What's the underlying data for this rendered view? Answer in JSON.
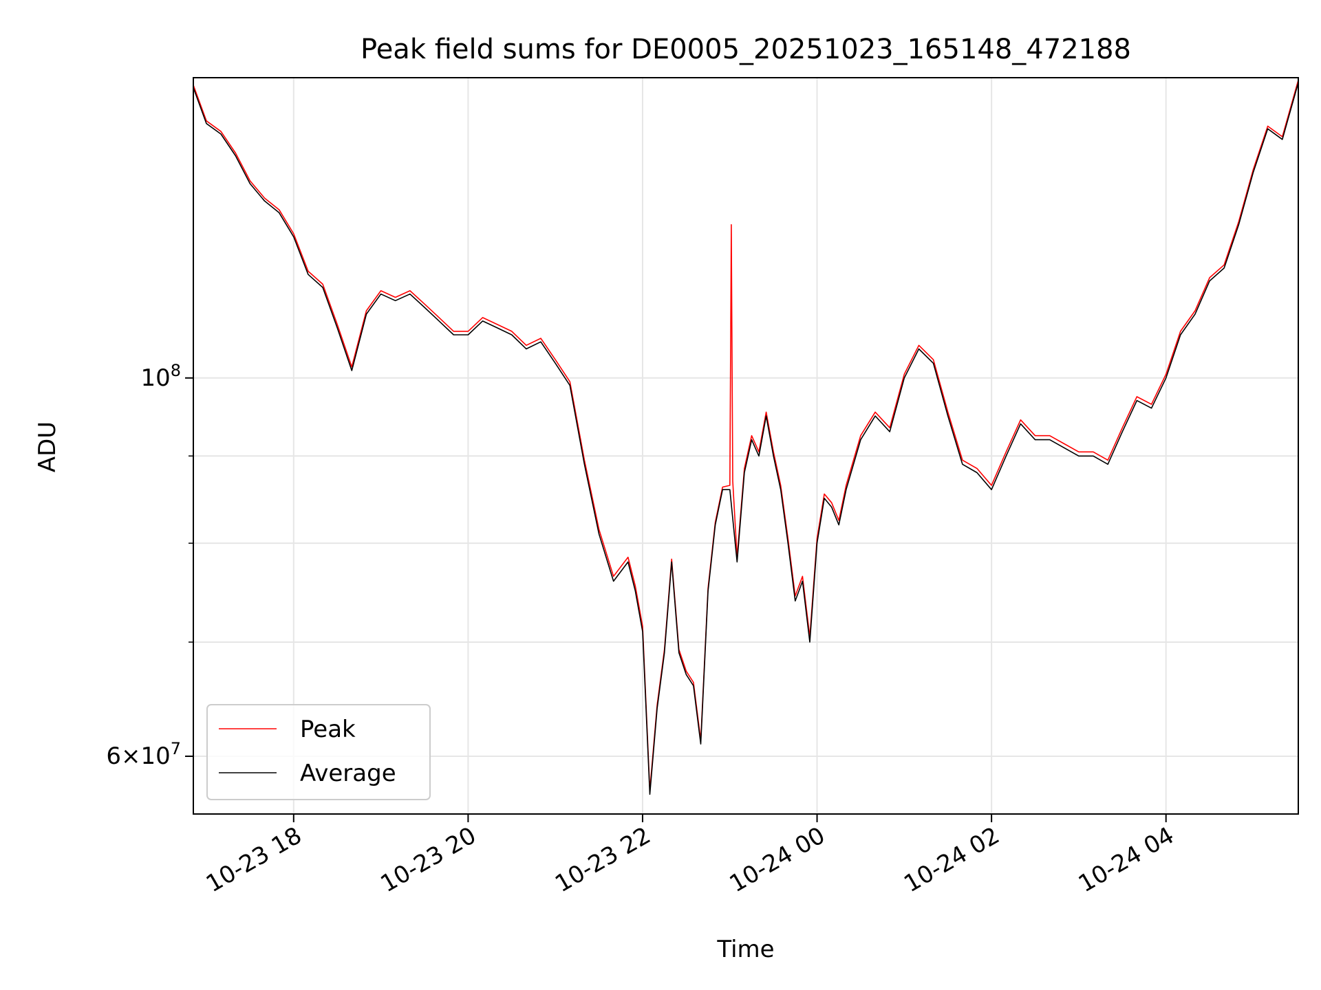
{
  "chart_data": {
    "type": "line",
    "title": "Peak field sums for DE0005_20251023_165148_472188",
    "xlabel": "Time",
    "ylabel": "ADU",
    "x_scale": "time",
    "y_scale": "log",
    "xlim": [
      "2025-10-23 16:51",
      "2025-10-24 05:31"
    ],
    "ylim": [
      55500000,
      150000000
    ],
    "x_ticks": [
      {
        "t": "2025-10-23 18:00",
        "label": "10-23 18"
      },
      {
        "t": "2025-10-23 20:00",
        "label": "10-23 20"
      },
      {
        "t": "2025-10-23 22:00",
        "label": "10-23 22"
      },
      {
        "t": "2025-10-24 00:00",
        "label": "10-24 00"
      },
      {
        "t": "2025-10-24 02:00",
        "label": "10-24 02"
      },
      {
        "t": "2025-10-24 04:00",
        "label": "10-24 04"
      }
    ],
    "y_major_ticks": [
      {
        "value": 60000000,
        "mantissa": "6",
        "exponent": "7"
      },
      {
        "value": 100000000,
        "mantissa": "",
        "exponent": "8"
      }
    ],
    "y_minor_ticks": [
      70000000,
      80000000,
      90000000
    ],
    "grid": true,
    "legend": {
      "position": "lower-left",
      "entries": [
        "Peak",
        "Average"
      ]
    },
    "colors": {
      "Peak": "#ff0000",
      "Average": "#000000",
      "grid": "#e6e6e6"
    },
    "series": [
      {
        "name": "Average",
        "color": "#000000",
        "x": [
          "2025-10-23 16:51",
          "2025-10-23 17:00",
          "2025-10-23 17:10",
          "2025-10-23 17:20",
          "2025-10-23 17:30",
          "2025-10-23 17:40",
          "2025-10-23 17:50",
          "2025-10-23 18:00",
          "2025-10-23 18:10",
          "2025-10-23 18:20",
          "2025-10-23 18:30",
          "2025-10-23 18:40",
          "2025-10-23 18:50",
          "2025-10-23 19:00",
          "2025-10-23 19:10",
          "2025-10-23 19:20",
          "2025-10-23 19:30",
          "2025-10-23 19:40",
          "2025-10-23 19:50",
          "2025-10-23 20:00",
          "2025-10-23 20:10",
          "2025-10-23 20:20",
          "2025-10-23 20:30",
          "2025-10-23 20:40",
          "2025-10-23 20:50",
          "2025-10-23 21:00",
          "2025-10-23 21:10",
          "2025-10-23 21:20",
          "2025-10-23 21:30",
          "2025-10-23 21:40",
          "2025-10-23 21:50",
          "2025-10-23 21:55",
          "2025-10-23 22:00",
          "2025-10-23 22:05",
          "2025-10-23 22:10",
          "2025-10-23 22:15",
          "2025-10-23 22:20",
          "2025-10-23 22:25",
          "2025-10-23 22:30",
          "2025-10-23 22:35",
          "2025-10-23 22:40",
          "2025-10-23 22:45",
          "2025-10-23 22:50",
          "2025-10-23 22:55",
          "2025-10-23 23:00",
          "2025-10-23 23:05",
          "2025-10-23 23:10",
          "2025-10-23 23:15",
          "2025-10-23 23:20",
          "2025-10-23 23:25",
          "2025-10-23 23:30",
          "2025-10-23 23:35",
          "2025-10-23 23:40",
          "2025-10-23 23:45",
          "2025-10-23 23:50",
          "2025-10-23 23:55",
          "2025-10-24 00:00",
          "2025-10-24 00:05",
          "2025-10-24 00:10",
          "2025-10-24 00:15",
          "2025-10-24 00:20",
          "2025-10-24 00:30",
          "2025-10-24 00:40",
          "2025-10-24 00:50",
          "2025-10-24 01:00",
          "2025-10-24 01:10",
          "2025-10-24 01:20",
          "2025-10-24 01:30",
          "2025-10-24 01:40",
          "2025-10-24 01:50",
          "2025-10-24 02:00",
          "2025-10-24 02:10",
          "2025-10-24 02:20",
          "2025-10-24 02:30",
          "2025-10-24 02:40",
          "2025-10-24 02:50",
          "2025-10-24 03:00",
          "2025-10-24 03:10",
          "2025-10-24 03:20",
          "2025-10-24 03:30",
          "2025-10-24 03:40",
          "2025-10-24 03:50",
          "2025-10-24 04:00",
          "2025-10-24 04:10",
          "2025-10-24 04:20",
          "2025-10-24 04:30",
          "2025-10-24 04:40",
          "2025-10-24 04:50",
          "2025-10-24 05:00",
          "2025-10-24 05:10",
          "2025-10-24 05:20",
          "2025-10-24 05:31"
        ],
        "y": [
          148000000,
          141000000,
          139000000,
          135000000,
          130000000,
          127000000,
          125000000,
          121000000,
          115000000,
          113000000,
          107000000,
          101000000,
          109000000,
          112000000,
          111000000,
          112000000,
          110000000,
          108000000,
          106000000,
          106000000,
          108000000,
          107000000,
          106000000,
          104000000,
          105000000,
          102000000,
          99000000,
          89000000,
          81000000,
          76000000,
          78000000,
          75000000,
          71000000,
          57000000,
          64000000,
          69000000,
          78000000,
          69000000,
          67000000,
          66000000,
          61000000,
          75000000,
          82000000,
          86000000,
          86000000,
          78000000,
          88000000,
          92000000,
          90000000,
          95000000,
          90000000,
          86000000,
          80000000,
          74000000,
          76000000,
          70000000,
          80000000,
          85000000,
          84000000,
          82000000,
          86000000,
          92000000,
          95000000,
          93000000,
          100000000,
          104000000,
          102000000,
          95000000,
          89000000,
          88000000,
          86000000,
          90000000,
          94000000,
          92000000,
          92000000,
          91000000,
          90000000,
          90000000,
          89000000,
          93000000,
          97000000,
          96000000,
          100000000,
          106000000,
          109000000,
          114000000,
          116000000,
          123000000,
          132000000,
          140000000,
          138000000,
          149000000
        ]
      },
      {
        "name": "Peak",
        "color": "#ff0000",
        "x": [
          "2025-10-23 16:51",
          "2025-10-23 17:00",
          "2025-10-23 17:10",
          "2025-10-23 17:20",
          "2025-10-23 17:30",
          "2025-10-23 17:40",
          "2025-10-23 17:50",
          "2025-10-23 18:00",
          "2025-10-23 18:10",
          "2025-10-23 18:20",
          "2025-10-23 18:30",
          "2025-10-23 18:40",
          "2025-10-23 18:50",
          "2025-10-23 19:00",
          "2025-10-23 19:10",
          "2025-10-23 19:20",
          "2025-10-23 19:30",
          "2025-10-23 19:40",
          "2025-10-23 19:50",
          "2025-10-23 20:00",
          "2025-10-23 20:10",
          "2025-10-23 20:20",
          "2025-10-23 20:30",
          "2025-10-23 20:40",
          "2025-10-23 20:50",
          "2025-10-23 21:00",
          "2025-10-23 21:10",
          "2025-10-23 21:20",
          "2025-10-23 21:30",
          "2025-10-23 21:40",
          "2025-10-23 21:50",
          "2025-10-23 21:55",
          "2025-10-23 22:00",
          "2025-10-23 22:05",
          "2025-10-23 22:10",
          "2025-10-23 22:15",
          "2025-10-23 22:20",
          "2025-10-23 22:25",
          "2025-10-23 22:30",
          "2025-10-23 22:35",
          "2025-10-23 22:40",
          "2025-10-23 22:45",
          "2025-10-23 22:50",
          "2025-10-23 22:55",
          "2025-10-23 23:00",
          "2025-10-23 23:01",
          "2025-10-23 23:02",
          "2025-10-23 23:05",
          "2025-10-23 23:10",
          "2025-10-23 23:15",
          "2025-10-23 23:20",
          "2025-10-23 23:25",
          "2025-10-23 23:30",
          "2025-10-23 23:35",
          "2025-10-23 23:40",
          "2025-10-23 23:45",
          "2025-10-23 23:50",
          "2025-10-23 23:55",
          "2025-10-24 00:00",
          "2025-10-24 00:05",
          "2025-10-24 00:10",
          "2025-10-24 00:15",
          "2025-10-24 00:20",
          "2025-10-24 00:30",
          "2025-10-24 00:40",
          "2025-10-24 00:50",
          "2025-10-24 01:00",
          "2025-10-24 01:10",
          "2025-10-24 01:20",
          "2025-10-24 01:30",
          "2025-10-24 01:40",
          "2025-10-24 01:50",
          "2025-10-24 02:00",
          "2025-10-24 02:10",
          "2025-10-24 02:20",
          "2025-10-24 02:30",
          "2025-10-24 02:40",
          "2025-10-24 02:50",
          "2025-10-24 03:00",
          "2025-10-24 03:10",
          "2025-10-24 03:20",
          "2025-10-24 03:30",
          "2025-10-24 03:40",
          "2025-10-24 03:50",
          "2025-10-24 04:00",
          "2025-10-24 04:10",
          "2025-10-24 04:20",
          "2025-10-24 04:30",
          "2025-10-24 04:40",
          "2025-10-24 04:50",
          "2025-10-24 05:00",
          "2025-10-24 05:10",
          "2025-10-24 05:20",
          "2025-10-24 05:31"
        ],
        "y": [
          148500000,
          141500000,
          139500000,
          135500000,
          130500000,
          127500000,
          125500000,
          121500000,
          115500000,
          113500000,
          107500000,
          101500000,
          109500000,
          112500000,
          111500000,
          112500000,
          110500000,
          108500000,
          106500000,
          106500000,
          108500000,
          107500000,
          106500000,
          104500000,
          105500000,
          102500000,
          99500000,
          89500000,
          81500000,
          76500000,
          78500000,
          75500000,
          71500000,
          57300000,
          64300000,
          69300000,
          78300000,
          69300000,
          67300000,
          66300000,
          61300000,
          75300000,
          82300000,
          86300000,
          86500000,
          123000000,
          87000000,
          78500000,
          88500000,
          92500000,
          90500000,
          95500000,
          90500000,
          86500000,
          80500000,
          74500000,
          76500000,
          70500000,
          80500000,
          85500000,
          84500000,
          82500000,
          86500000,
          92500000,
          95500000,
          93500000,
          100500000,
          104500000,
          102500000,
          95500000,
          89500000,
          88500000,
          86500000,
          90500000,
          94500000,
          92500000,
          92500000,
          91500000,
          90500000,
          90500000,
          89500000,
          93500000,
          97500000,
          96500000,
          100500000,
          106500000,
          109500000,
          114500000,
          116500000,
          123500000,
          132500000,
          140500000,
          138500000,
          149500000
        ]
      }
    ]
  }
}
